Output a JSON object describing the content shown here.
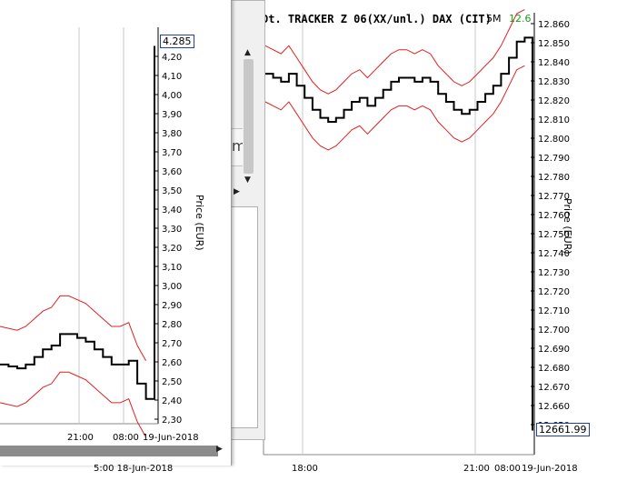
{
  "back_chart": {
    "title": "Dt. TRACKER Z 06(XX/unl.) DAX (CIT)",
    "interval": "5M",
    "last_green": "12.6",
    "current_price": "12661.99",
    "ylabel": "Price (EUR)",
    "y_ticks": [
      "12.860",
      "12.850",
      "12.840",
      "12.830",
      "12.820",
      "12.810",
      "12.800",
      "12.790",
      "12.780",
      "12.770",
      "12.760",
      "12.750",
      "12.740",
      "12.730",
      "12.720",
      "12.710",
      "12.700",
      "12.690",
      "12.680",
      "12.670",
      "12.660",
      "12.650"
    ],
    "x_ticks": [
      "18:00",
      "21:00",
      "08:00",
      "19-Jun-2018"
    ],
    "colors": {
      "price": "#000000",
      "band": "#e02020",
      "accent_green": "#1a9a1a"
    }
  },
  "front_chart": {
    "current_price": "4.285",
    "ylabel": "Price (EUR)",
    "y_ticks": [
      "4,20",
      "4,10",
      "4,00",
      "3,90",
      "3,80",
      "3,70",
      "3,60",
      "3,50",
      "3,40",
      "3,30",
      "3,20",
      "3,10",
      "3,00",
      "2,90",
      "2,80",
      "2,70",
      "2,60",
      "2,50",
      "2,40",
      "2,30"
    ],
    "x_ticks": [
      "21:00",
      "08:00",
      "19-Jun-2018"
    ],
    "footer_date": "5:00 18-Jun-2018"
  },
  "middle_panel": {
    "collapse_glyph": "◀",
    "scroll_up": "▲",
    "scroll_down": "▼",
    "arrow_right": "▶",
    "partial_label": "m"
  },
  "chart_data": [
    {
      "type": "line",
      "title": "Dt. TRACKER Z 06(XX/unl.) DAX (CIT)",
      "ylabel": "Price (EUR)",
      "ylim": [
        12650,
        12865
      ],
      "series": [
        {
          "values": [
            12840,
            12838,
            12836,
            12840,
            12834,
            12828,
            12822,
            12818,
            12816,
            12818,
            12822,
            12826,
            12828,
            12824,
            12828,
            12832,
            12836,
            12838,
            12838,
            12836,
            12838,
            12836,
            12830,
            12826,
            12822,
            12820,
            12822,
            12826,
            12830,
            12834,
            12840,
            12848,
            12856,
            12858,
            12662
          ]
        }
      ]
    },
    {
      "type": "line",
      "ylabel": "Price (EUR)",
      "ylim": [
        2.27,
        4.3
      ],
      "series": [
        {
          "values": [
            2.58,
            2.57,
            2.56,
            2.58,
            2.62,
            2.66,
            2.68,
            2.74,
            2.74,
            2.72,
            2.7,
            2.66,
            2.62,
            2.58,
            2.58,
            2.6,
            2.48,
            2.4,
            4.25
          ]
        }
      ]
    }
  ]
}
